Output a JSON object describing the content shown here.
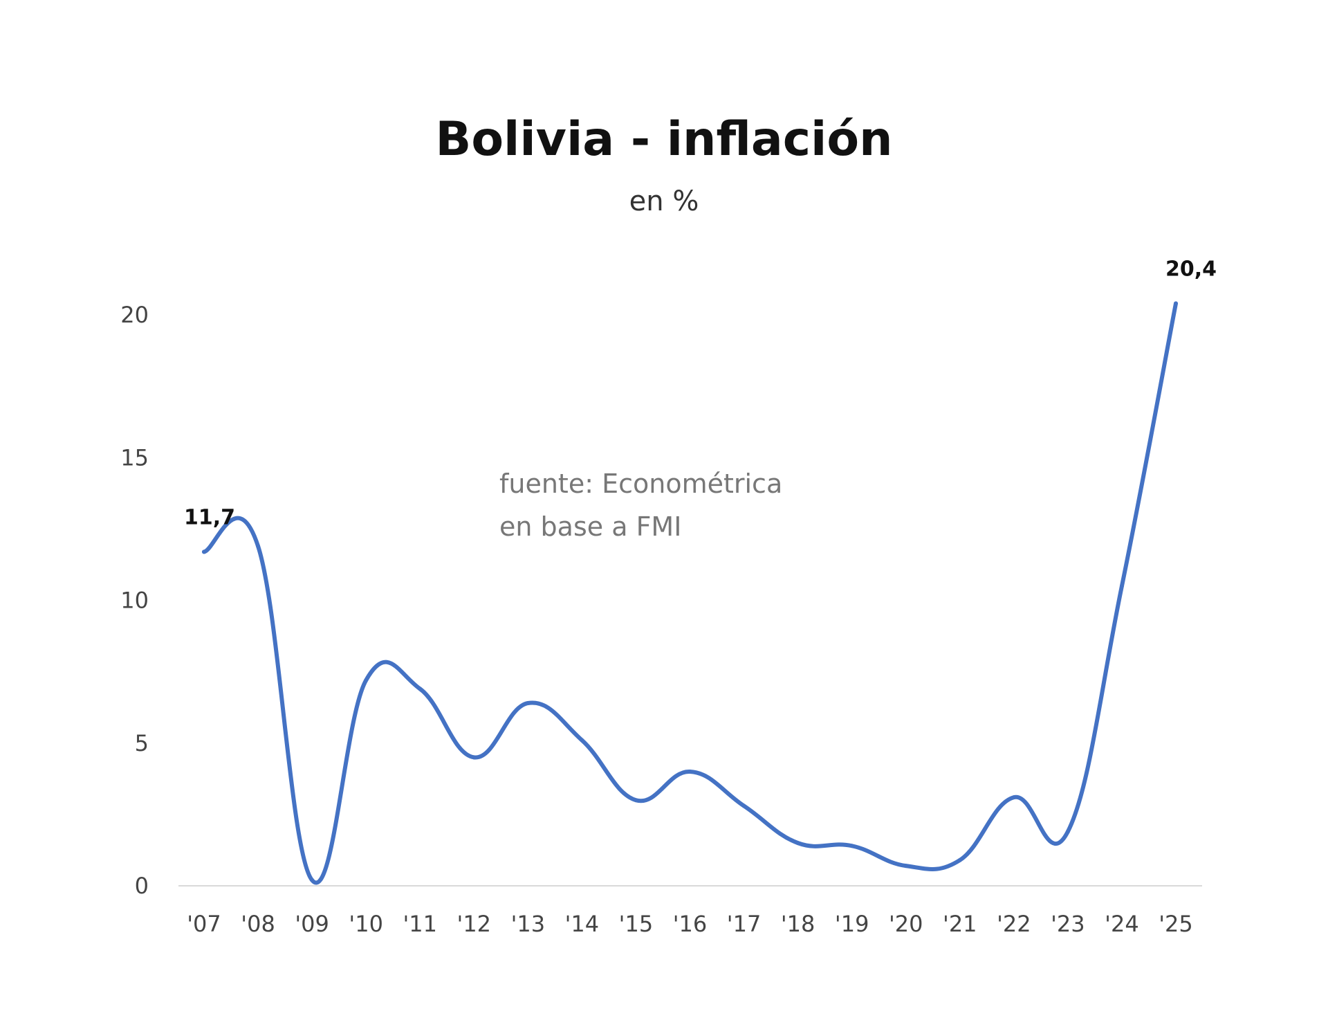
{
  "chart_data": {
    "type": "line",
    "title": "Bolivia - inflación",
    "subtitle": "en %",
    "annotation": [
      "fuente: Econométrica",
      "en base a FMI"
    ],
    "categories": [
      "'07",
      "'08",
      "'09",
      "'10",
      "'11",
      "'12",
      "'13",
      "'14",
      "'15",
      "'16",
      "'17",
      "'18",
      "'19",
      "'20",
      "'21",
      "'22",
      "'23",
      "'24",
      "'25"
    ],
    "series": [
      {
        "color": "#4472C4",
        "values": [
          11.7,
          11.9,
          0.2,
          7.2,
          6.9,
          4.5,
          6.4,
          5.1,
          3.0,
          4.0,
          2.8,
          1.5,
          1.4,
          0.7,
          0.9,
          3.1,
          1.9,
          10.5,
          20.4
        ]
      }
    ],
    "data_labels": [
      {
        "category": "'07",
        "text": "11,7"
      },
      {
        "category": "'25",
        "text": "20,4"
      }
    ],
    "yticks": [
      "0",
      "5",
      "10",
      "15",
      "20"
    ],
    "ylim": [
      0,
      20
    ],
    "grid": false,
    "legend": "none"
  }
}
